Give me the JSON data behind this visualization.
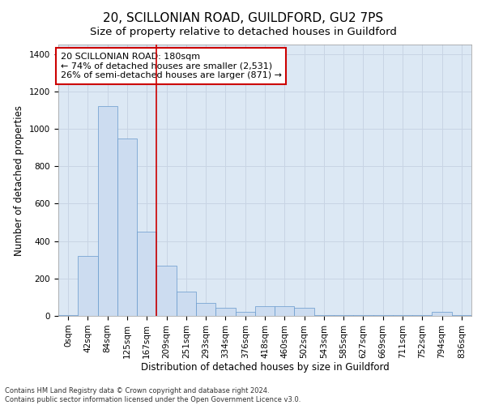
{
  "title_line1": "20, SCILLONIAN ROAD, GUILDFORD, GU2 7PS",
  "title_line2": "Size of property relative to detached houses in Guildford",
  "xlabel": "Distribution of detached houses by size in Guildford",
  "ylabel": "Number of detached properties",
  "footer_line1": "Contains HM Land Registry data © Crown copyright and database right 2024.",
  "footer_line2": "Contains public sector information licensed under the Open Government Licence v3.0.",
  "annotation_line1": "20 SCILLONIAN ROAD: 180sqm",
  "annotation_line2": "← 74% of detached houses are smaller (2,531)",
  "annotation_line3": "26% of semi-detached houses are larger (871) →",
  "bar_labels": [
    "0sqm",
    "42sqm",
    "84sqm",
    "125sqm",
    "167sqm",
    "209sqm",
    "251sqm",
    "293sqm",
    "334sqm",
    "376sqm",
    "418sqm",
    "460sqm",
    "502sqm",
    "543sqm",
    "585sqm",
    "627sqm",
    "669sqm",
    "711sqm",
    "752sqm",
    "794sqm",
    "836sqm"
  ],
  "bar_values": [
    5,
    320,
    1120,
    950,
    450,
    270,
    130,
    70,
    45,
    20,
    50,
    50,
    45,
    5,
    5,
    5,
    5,
    5,
    5,
    20,
    5
  ],
  "bar_color": "#ccdcf0",
  "bar_edge_color": "#6699cc",
  "vline_x": 4.5,
  "vline_color": "#cc0000",
  "ylim": [
    0,
    1450
  ],
  "yticks": [
    0,
    200,
    400,
    600,
    800,
    1000,
    1200,
    1400
  ],
  "grid_color": "#c8d4e4",
  "bg_color": "#dce8f4",
  "annotation_box_edge": "#cc0000",
  "title1_fontsize": 11,
  "title2_fontsize": 9.5,
  "annotation_fontsize": 8,
  "axis_label_fontsize": 8.5,
  "tick_fontsize": 7.5,
  "footer_fontsize": 6
}
